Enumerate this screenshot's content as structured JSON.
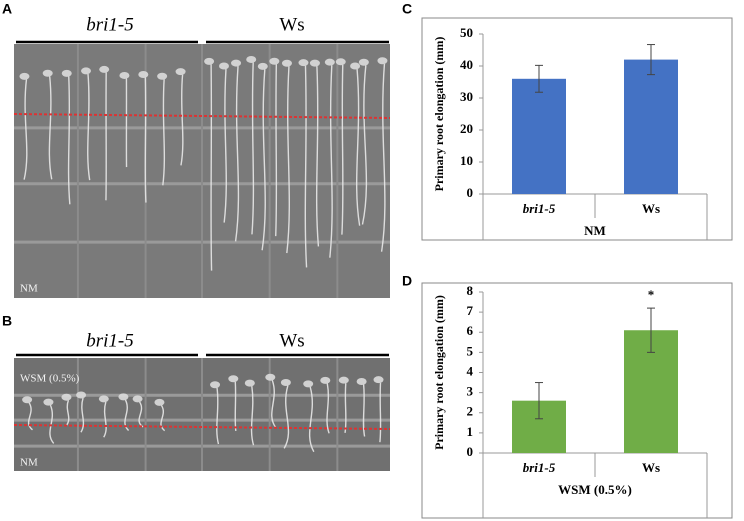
{
  "panels": {
    "A": {
      "letter": "A",
      "groups": [
        "bri1-5",
        "Ws"
      ],
      "condition": "NM"
    },
    "B": {
      "letter": "B",
      "groups": [
        "bri1-5",
        "Ws"
      ],
      "treatment": "WSM (0.5%)",
      "condition": "NM"
    }
  },
  "chart_data": [
    {
      "type": "bar",
      "panel_label": "C",
      "ylabel": "Primary root elongation (mm)",
      "categories": [
        "bri1-5",
        "Ws"
      ],
      "values": [
        36,
        42
      ],
      "errors": [
        4.2,
        4.7
      ],
      "group_label": "NM",
      "color": "#4472c4",
      "ylim": [
        0,
        50
      ],
      "yticks": [
        0,
        10,
        20,
        30,
        40,
        50
      ]
    },
    {
      "type": "bar",
      "panel_label": "D",
      "ylabel": "Primary root elongation (mm)",
      "categories": [
        "bri1-5",
        "Ws"
      ],
      "values": [
        2.6,
        6.1
      ],
      "errors": [
        0.9,
        1.1
      ],
      "significance": [
        null,
        "*"
      ],
      "group_label": "WSM (0.5%)",
      "color": "#70ad47",
      "ylim": [
        0,
        8
      ],
      "yticks": [
        0,
        1,
        2,
        3,
        4,
        5,
        6,
        7,
        8
      ]
    }
  ]
}
